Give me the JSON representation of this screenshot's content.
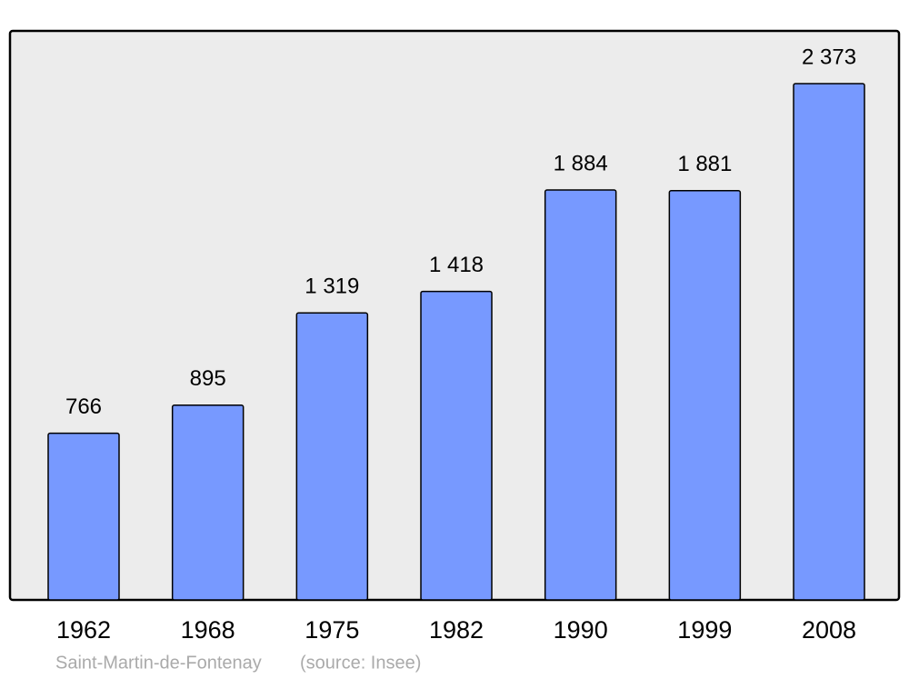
{
  "chart_data": {
    "type": "bar",
    "categories": [
      "1962",
      "1968",
      "1975",
      "1982",
      "1990",
      "1999",
      "2008"
    ],
    "values": [
      766,
      895,
      1319,
      1418,
      1884,
      1881,
      2373
    ],
    "value_labels": [
      "766",
      "895",
      "1 319",
      "1 418",
      "1 884",
      "1 881",
      "2 373"
    ],
    "color": "#7799ff",
    "footer": {
      "place": "Saint-Martin-de-Fontenay",
      "source": "(source: Insee)"
    }
  }
}
